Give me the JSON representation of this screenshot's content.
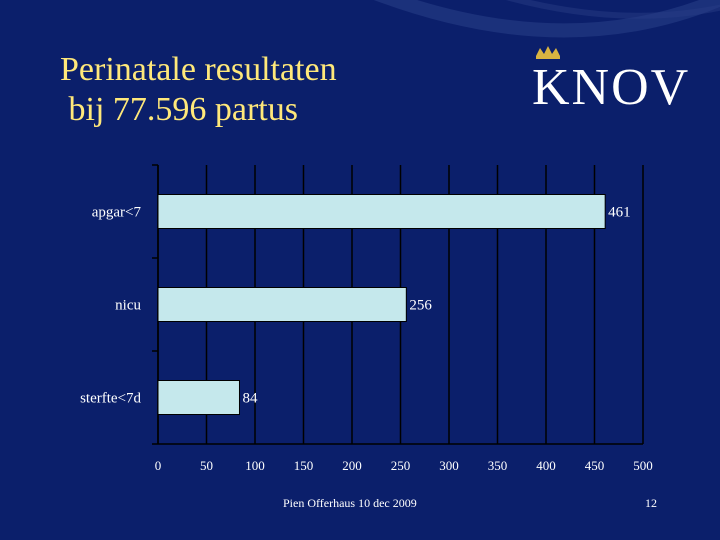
{
  "slide": {
    "title_line1": "Perinatale resultaten",
    "title_line2": " bij 77.596 partus",
    "logo_text": "KNOV",
    "footer_text": "Pien Offerhaus 10 dec 2009",
    "page_number": "12"
  },
  "colors": {
    "background": "#0b1f6b",
    "title": "#ffe87a",
    "bar_fill": "#c5e8ec",
    "bar_stroke": "#000000",
    "text": "#ffffff",
    "axis": "#000000"
  },
  "chart_data": {
    "type": "bar",
    "orientation": "horizontal",
    "categories": [
      "apgar<7",
      "nicu",
      "sterfte<7d"
    ],
    "values": [
      461,
      256,
      84
    ],
    "data_labels": [
      "461",
      "256",
      "84"
    ],
    "xlim": [
      0,
      500
    ],
    "x_ticks": [
      0,
      50,
      100,
      150,
      200,
      250,
      300,
      350,
      400,
      450,
      500
    ],
    "grid": true,
    "legend": "none",
    "title": "",
    "xlabel": "",
    "ylabel": ""
  }
}
